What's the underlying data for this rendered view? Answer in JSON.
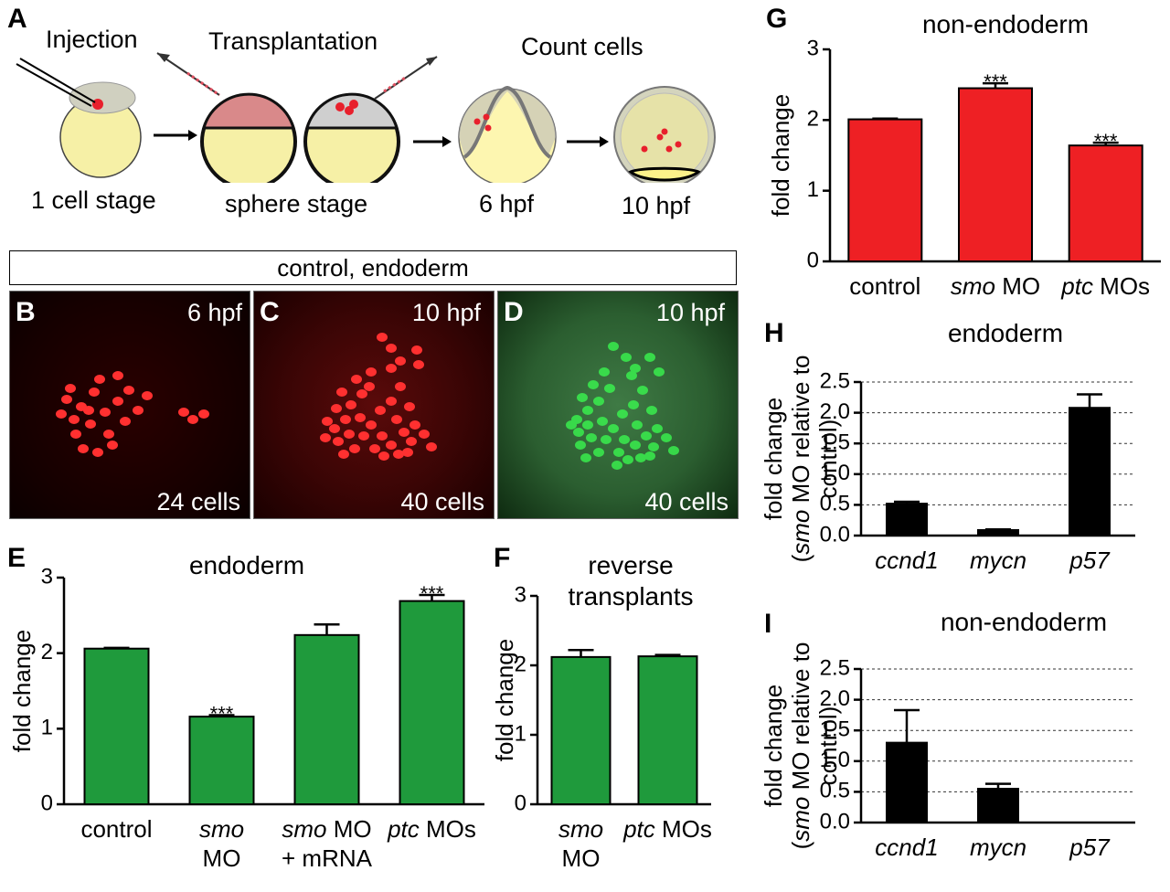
{
  "panel_letters": {
    "A": "A",
    "B": "B",
    "C": "C",
    "D": "D",
    "E": "E",
    "F": "F",
    "G": "G",
    "H": "H",
    "I": "I"
  },
  "schematic": {
    "injection": "Injection",
    "transplantation": "Transplantation",
    "count_cells": "Count cells",
    "stage_1cell": "1 cell stage",
    "stage_sphere": "sphere stage",
    "stage_6hpf": "6 hpf",
    "stage_10hpf": "10 hpf"
  },
  "banner": "control, endoderm",
  "micrographs": [
    {
      "time": "6 hpf",
      "count": "24 cells",
      "color": "#ff3030"
    },
    {
      "time": "10 hpf",
      "count": "40 cells",
      "color": "#ff3030"
    },
    {
      "time": "10 hpf",
      "count": "40 cells",
      "color": "#3aff50"
    }
  ],
  "colors": {
    "green": "#1f9a3c",
    "red": "#ee2024",
    "black": "#000000"
  },
  "chart_data": [
    {
      "id": "E",
      "type": "bar",
      "title": "endoderm",
      "ylabel": "fold change",
      "ylim": [
        0,
        3
      ],
      "yticks": [
        "0",
        "1",
        "2",
        "3"
      ],
      "categories": [
        "control",
        "smo MO",
        "smo MO + mRNA",
        "ptc MOs"
      ],
      "cat_lines": [
        [
          "control"
        ],
        [
          "smo",
          "MO"
        ],
        [
          "smo MO",
          "+ mRNA"
        ],
        [
          "ptc MOs"
        ]
      ],
      "values": [
        2.06,
        1.16,
        2.24,
        2.69
      ],
      "errors": [
        0.01,
        0.02,
        0.14,
        0.08
      ],
      "annotations": [
        "",
        "***",
        "",
        "***"
      ],
      "color": "#1f9a3c",
      "grid": false
    },
    {
      "id": "F",
      "type": "bar",
      "title": "reverse transplants",
      "title_lines": [
        "reverse",
        "transplants"
      ],
      "ylabel": "fold change",
      "ylim": [
        0,
        3
      ],
      "yticks": [
        "0",
        "1",
        "2",
        "3"
      ],
      "categories": [
        "smo MO",
        "ptc MOs"
      ],
      "cat_lines": [
        [
          "smo",
          "MO"
        ],
        [
          "ptc MOs"
        ]
      ],
      "values": [
        2.12,
        2.13
      ],
      "errors": [
        0.1,
        0.02
      ],
      "annotations": [
        "",
        ""
      ],
      "color": "#1f9a3c",
      "grid": false
    },
    {
      "id": "G",
      "type": "bar",
      "title": "non-endoderm",
      "ylabel": "fold change",
      "ylim": [
        0,
        3
      ],
      "yticks": [
        "0",
        "1",
        "2",
        "3"
      ],
      "categories": [
        "control",
        "smo MO",
        "ptc MOs"
      ],
      "cat_lines": [
        [
          "control"
        ],
        [
          "smo MO"
        ],
        [
          "ptc MOs"
        ]
      ],
      "values": [
        2.01,
        2.45,
        1.64
      ],
      "errors": [
        0.01,
        0.07,
        0.04
      ],
      "annotations": [
        "",
        "***",
        "***"
      ],
      "color": "#ee2024",
      "grid": false
    },
    {
      "id": "H",
      "type": "bar",
      "title": "endoderm",
      "ylabel": "fold change (smo MO relative to control)",
      "ylabel_lines": [
        "fold change",
        "(smo MO relative to",
        "control)"
      ],
      "ylim": [
        0,
        2.5
      ],
      "yticks": [
        "0.0",
        "0.5",
        "1.0",
        "1.5",
        "2.0",
        "2.5"
      ],
      "categories": [
        "ccnd1",
        "mycn",
        "p57"
      ],
      "values": [
        0.52,
        0.09,
        2.08
      ],
      "errors": [
        0.03,
        0.01,
        0.22
      ],
      "color": "#000000",
      "grid": true
    },
    {
      "id": "I",
      "type": "bar",
      "title": "non-endoderm",
      "ylabel": "fold change (smo MO relative to control)",
      "ylabel_lines": [
        "fold change",
        "(smo MO relative to",
        "control)"
      ],
      "ylim": [
        0,
        2.5
      ],
      "yticks": [
        "0.0",
        "0.5",
        "1.0",
        "1.5",
        "2.0",
        "2.5"
      ],
      "categories": [
        "ccnd1",
        "mycn",
        "p57"
      ],
      "values": [
        1.3,
        0.55,
        0
      ],
      "errors": [
        0.53,
        0.08,
        0
      ],
      "color": "#000000",
      "grid": true
    }
  ]
}
